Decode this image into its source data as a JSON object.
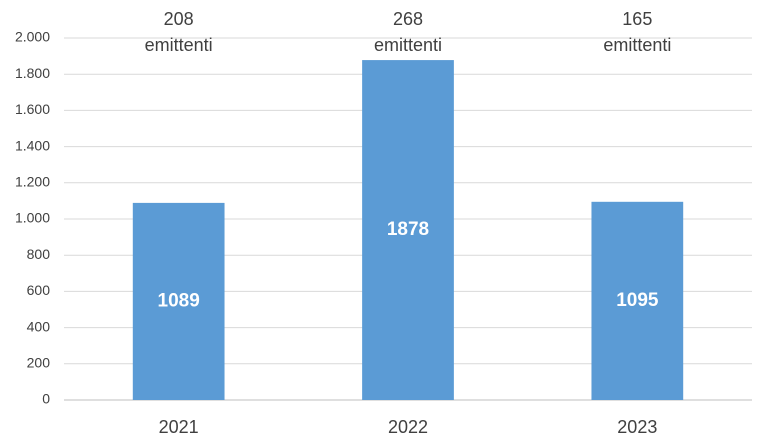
{
  "chart_data": {
    "type": "bar",
    "categories": [
      "2021",
      "2022",
      "2023"
    ],
    "values": [
      1089,
      1878,
      1095
    ],
    "color": "#5b9bd5",
    "annotations": [
      [
        "208",
        "emittenti"
      ],
      [
        "268",
        "emittenti"
      ],
      [
        "165",
        "emittenti"
      ]
    ],
    "ylim": [
      0,
      2000
    ],
    "yticks": [
      0,
      200,
      400,
      600,
      800,
      {
        "value": 1000,
        "label": "1.000"
      },
      {
        "value": 1200,
        "label": "1.200"
      },
      {
        "value": 1400,
        "label": "1.400"
      },
      {
        "value": 1600,
        "label": "1.600"
      },
      {
        "value": 1800,
        "label": "1.800"
      },
      {
        "value": 2000,
        "label": "2.000"
      }
    ],
    "grid": true
  }
}
